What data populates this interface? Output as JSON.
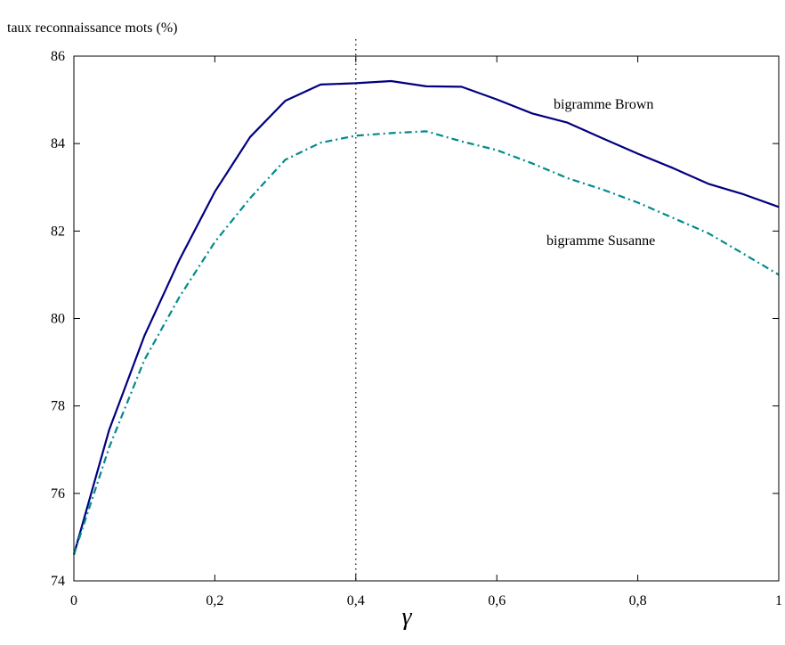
{
  "chart_data": {
    "type": "line",
    "title": "",
    "xlabel": "γ",
    "ylabel": "taux reconnaissance mots (%)",
    "xlim": [
      0,
      1
    ],
    "ylim": [
      74,
      86
    ],
    "x_ticks": [
      0,
      0.2,
      0.4,
      0.6,
      0.8,
      1
    ],
    "x_tick_labels": [
      "0",
      "0,2",
      "0,4",
      "0,6",
      "0,8",
      "1"
    ],
    "y_ticks": [
      74,
      76,
      78,
      80,
      82,
      84,
      86
    ],
    "y_tick_labels": [
      "74",
      "76",
      "78",
      "80",
      "82",
      "84",
      "86"
    ],
    "grid": false,
    "reference_line": {
      "x": 0.4,
      "style": "dotted"
    },
    "x": [
      0,
      0.05,
      0.1,
      0.15,
      0.2,
      0.25,
      0.3,
      0.35,
      0.4,
      0.45,
      0.5,
      0.55,
      0.6,
      0.65,
      0.7,
      0.75,
      0.8,
      0.85,
      0.9,
      0.95,
      1.0
    ],
    "series": [
      {
        "name": "bigramme Brown",
        "color": "#000080",
        "style": "solid",
        "values": [
          74.6,
          77.45,
          79.6,
          81.35,
          82.9,
          84.15,
          84.98,
          85.35,
          85.38,
          85.43,
          85.31,
          85.3,
          85.01,
          84.69,
          84.48,
          84.12,
          83.77,
          83.44,
          83.08,
          82.84,
          82.55
        ]
      },
      {
        "name": "bigramme Susanne",
        "color": "#008b8b",
        "style": "dashdot",
        "values": [
          74.6,
          77.05,
          79.05,
          80.5,
          81.75,
          82.75,
          83.63,
          84.02,
          84.18,
          84.24,
          84.28,
          84.05,
          83.85,
          83.55,
          83.21,
          82.95,
          82.65,
          82.3,
          81.95,
          81.48,
          81.0
        ]
      }
    ]
  }
}
